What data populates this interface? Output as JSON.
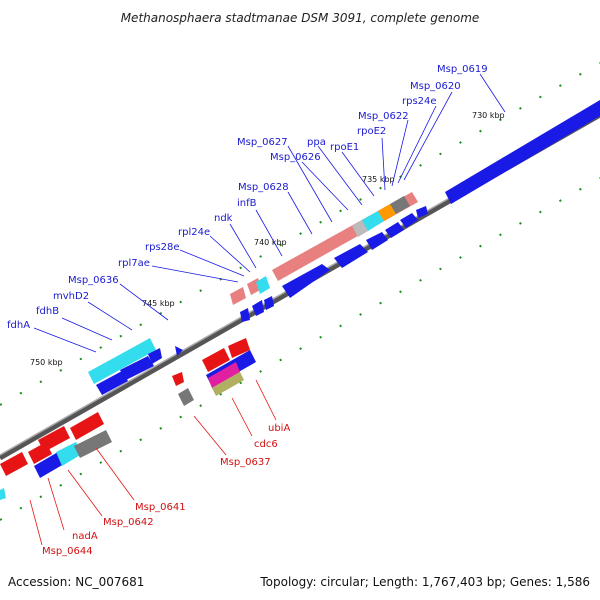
{
  "title": "Methanosphaera stadtmanae DSM 3091, complete genome",
  "footer": {
    "accession": "Accession: NC_007681",
    "summary": "Topology: circular; Length: 1,767,403 bp; Genes: 1,586"
  },
  "colors": {
    "blue": "#1a1ae6",
    "red": "#e61414",
    "pink": "#e88080",
    "cyan": "#33ddee",
    "gray": "#777777",
    "orange": "#ff9900",
    "green": "#1a8c1a",
    "magenta": "#e020a0",
    "olive": "#b0b060",
    "label_blue": "#1a1ad0",
    "label_red": "#d01010"
  },
  "kbp_ticks": [
    "730 kbp",
    "735 kbp",
    "740 kbp",
    "745 kbp",
    "750 kbp"
  ],
  "gene_labels_top": [
    "Msp_0619",
    "Msp_0620",
    "rps24e",
    "Msp_0622",
    "rpoE2",
    "rpoE1",
    "ppa",
    "Msp_0626",
    "Msp_0627",
    "Msp_0628",
    "infB",
    "ndk",
    "rpl24e",
    "rps28e",
    "rpl7ae",
    "Msp_0636",
    "mvhD2",
    "fdhB",
    "fdhA"
  ],
  "gene_labels_bottom": [
    "ubiA",
    "cdc6",
    "Msp_0637",
    "Msp_0641",
    "Msp_0642",
    "nadA",
    "Msp_0644"
  ]
}
